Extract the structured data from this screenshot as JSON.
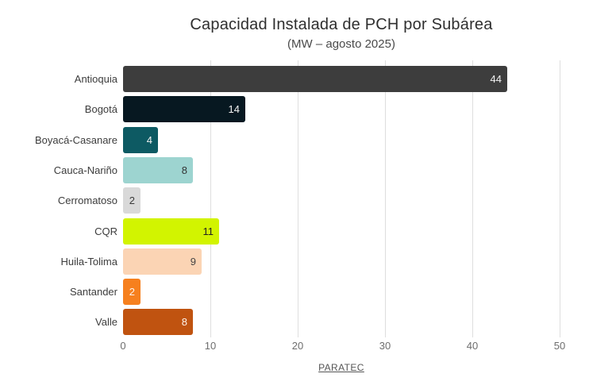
{
  "chart_data": {
    "type": "bar",
    "orientation": "horizontal",
    "title": "Capacidad Instalada de PCH por Subárea",
    "subtitle": "(MW – agosto 2025)",
    "categories": [
      "Antioquia",
      "Bogotá",
      "Boyacá-Casanare",
      "Cauca-Nariño",
      "Cerromatoso",
      "CQR",
      "Huila-Tolima",
      "Santander",
      "Valle"
    ],
    "values": [
      44,
      14,
      4,
      8,
      2,
      11,
      9,
      2,
      8
    ],
    "bar_colors": [
      "#3d3d3d",
      "#071821",
      "#0d5a63",
      "#9dd4d0",
      "#d9d9d9",
      "#d2f400",
      "#fbd4b4",
      "#f6801e",
      "#c05310"
    ],
    "value_label_colors": [
      "#f2f2f2",
      "#f2f2f2",
      "#f2f2f2",
      "#333333",
      "#3a3a3a",
      "#222222",
      "#444444",
      "#fdf4ec",
      "#fdf4ec"
    ],
    "x_ticks": [
      0,
      10,
      20,
      30,
      40,
      50
    ],
    "xlim": [
      0,
      50
    ],
    "grid": "vertical",
    "legend": "none",
    "source": "PARATEC"
  }
}
